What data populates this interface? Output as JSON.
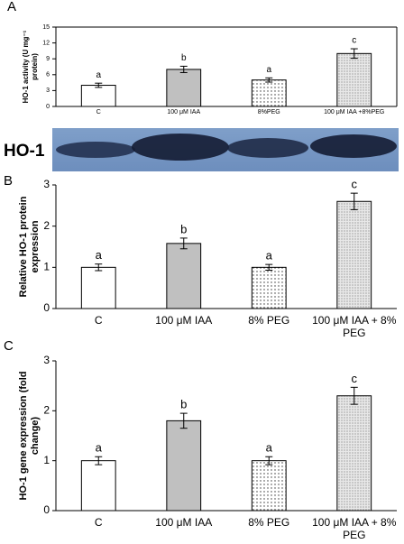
{
  "chart_data": [
    {
      "type": "bar",
      "panel_label": "A",
      "ylabel": "HO-1 activity (U mg⁻¹ protein)",
      "categories": [
        "C",
        "100 μM IAA",
        "8%PEG",
        "100 μM IAA +8%PEG"
      ],
      "values": [
        4,
        7,
        5,
        10
      ],
      "errors": [
        0.4,
        0.6,
        0.4,
        0.9
      ],
      "annotations": [
        "a",
        "b",
        "a",
        "c"
      ],
      "colors": [
        "#ffffff",
        "#c0c0c0",
        "#e6e6e6",
        "#d9d9d9"
      ],
      "patterns": [
        false,
        false,
        true,
        true
      ],
      "ylim": [
        0,
        15
      ],
      "yticks": [
        0,
        3,
        6,
        9,
        12,
        15
      ],
      "frame": true
    },
    {
      "type": "bar",
      "panel_label": "B",
      "ylabel": "Relative HO-1 protein expression",
      "categories": [
        "C",
        "100 μM IAA",
        "8% PEG",
        "100 μM IAA + 8% PEG"
      ],
      "values": [
        1,
        1.58,
        1,
        2.6
      ],
      "errors": [
        0.08,
        0.13,
        0.07,
        0.2
      ],
      "annotations": [
        "a",
        "b",
        "a",
        "c"
      ],
      "colors": [
        "#ffffff",
        "#c0c0c0",
        "#e6e6e6",
        "#d9d9d9"
      ],
      "patterns": [
        false,
        false,
        true,
        true
      ],
      "ylim": [
        0,
        3
      ],
      "yticks": [
        0,
        1,
        2,
        3
      ],
      "frame": false
    },
    {
      "type": "bar",
      "panel_label": "C",
      "ylabel": "HO-1 gene expression (fold change)",
      "categories": [
        "C",
        "100 μM IAA",
        "8% PEG",
        "100 μM IAA + 8% PEG"
      ],
      "values": [
        1,
        1.8,
        1,
        2.3
      ],
      "errors": [
        0.08,
        0.15,
        0.08,
        0.17
      ],
      "annotations": [
        "a",
        "b",
        "a",
        "c"
      ],
      "colors": [
        "#ffffff",
        "#c0c0c0",
        "#e6e6e6",
        "#d9d9d9"
      ],
      "patterns": [
        false,
        false,
        true,
        true
      ],
      "ylim": [
        0,
        3
      ],
      "yticks": [
        0,
        1,
        2,
        3
      ],
      "frame": false
    }
  ],
  "blot": {
    "label": "HO-1"
  }
}
